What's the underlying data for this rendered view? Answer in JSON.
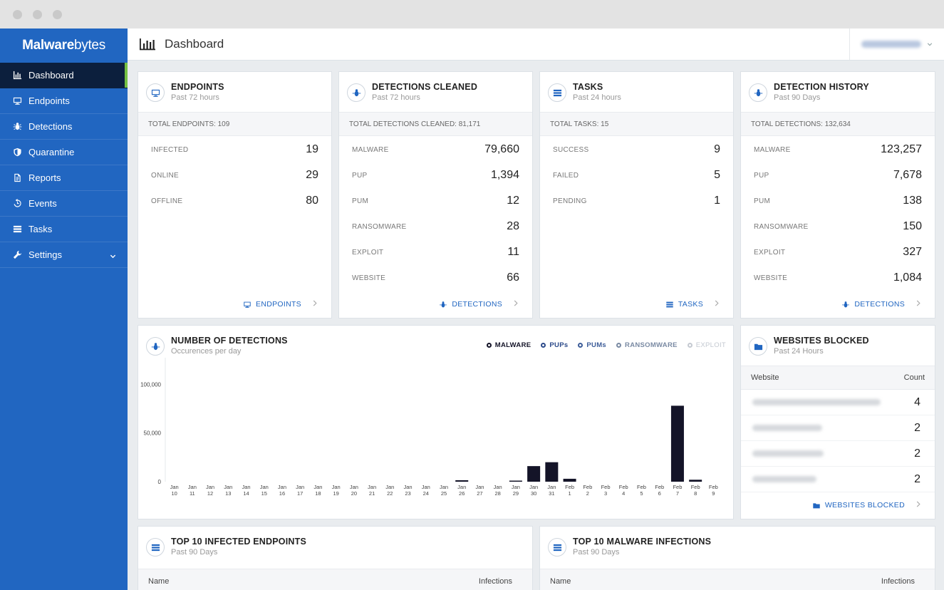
{
  "window": {
    "dots": [
      "#c9c9c9",
      "#c9c9c9",
      "#c9c9c9"
    ]
  },
  "brand": {
    "logo_prefix": "Malware",
    "logo_suffix": "bytes"
  },
  "colors": {
    "sidebar": "#2166c1",
    "active_nav": "#0c1f3d",
    "active_accent": "#74c043",
    "accent": "#2166c1",
    "bar": "#141428"
  },
  "sidebar": {
    "items": [
      {
        "label": "Dashboard",
        "icon": "bar-chart-icon"
      },
      {
        "label": "Endpoints",
        "icon": "monitor-icon"
      },
      {
        "label": "Detections",
        "icon": "bug-icon"
      },
      {
        "label": "Quarantine",
        "icon": "shield-icon"
      },
      {
        "label": "Reports",
        "icon": "document-icon"
      },
      {
        "label": "Events",
        "icon": "history-icon"
      },
      {
        "label": "Tasks",
        "icon": "tasks-icon"
      },
      {
        "label": "Settings",
        "icon": "wrench-icon"
      }
    ]
  },
  "header": {
    "title": "Dashboard"
  },
  "cards": {
    "endpoints": {
      "title": "ENDPOINTS",
      "subtitle": "Past 72 hours",
      "total": "TOTAL ENDPOINTS: 109",
      "rows": [
        {
          "label": "INFECTED",
          "value": "19"
        },
        {
          "label": "ONLINE",
          "value": "29"
        },
        {
          "label": "OFFLINE",
          "value": "80"
        }
      ],
      "link": "ENDPOINTS"
    },
    "detections_cleaned": {
      "title": "DETECTIONS CLEANED",
      "subtitle": "Past 72 hours",
      "total": "TOTAL DETECTIONS CLEANED: 81,171",
      "rows": [
        {
          "label": "MALWARE",
          "value": "79,660"
        },
        {
          "label": "PUP",
          "value": "1,394"
        },
        {
          "label": "PUM",
          "value": "12"
        },
        {
          "label": "RANSOMWARE",
          "value": "28"
        },
        {
          "label": "EXPLOIT",
          "value": "11"
        },
        {
          "label": "WEBSITE",
          "value": "66"
        }
      ],
      "link": "DETECTIONS"
    },
    "tasks": {
      "title": "TASKS",
      "subtitle": "Past 24 hours",
      "total": "TOTAL TASKS: 15",
      "rows": [
        {
          "label": "SUCCESS",
          "value": "9"
        },
        {
          "label": "FAILED",
          "value": "5"
        },
        {
          "label": "PENDING",
          "value": "1"
        }
      ],
      "link": "TASKS"
    },
    "detection_history": {
      "title": "DETECTION HISTORY",
      "subtitle": "Past 90 Days",
      "total": "TOTAL DETECTIONS: 132,634",
      "rows": [
        {
          "label": "MALWARE",
          "value": "123,257"
        },
        {
          "label": "PUP",
          "value": "7,678"
        },
        {
          "label": "PUM",
          "value": "138"
        },
        {
          "label": "RANSOMWARE",
          "value": "150"
        },
        {
          "label": "EXPLOIT",
          "value": "327"
        },
        {
          "label": "WEBSITE",
          "value": "1,084"
        }
      ],
      "link": "DETECTIONS"
    }
  },
  "detections_chart": {
    "title": "NUMBER OF DETECTIONS",
    "subtitle": "Occurences per day",
    "legend": [
      {
        "label": "MALWARE",
        "color": "#141428"
      },
      {
        "label": "PUPs",
        "color": "#2c4a8a"
      },
      {
        "label": "PUMs",
        "color": "#3d5d99"
      },
      {
        "label": "RANSOMWARE",
        "color": "#7a8aa3"
      },
      {
        "label": "EXPLOIT",
        "color": "#c4c9d1"
      }
    ]
  },
  "chart_data": {
    "type": "bar",
    "categories": [
      "Jan 10",
      "Jan 11",
      "Jan 12",
      "Jan 13",
      "Jan 14",
      "Jan 15",
      "Jan 16",
      "Jan 17",
      "Jan 18",
      "Jan 19",
      "Jan 20",
      "Jan 21",
      "Jan 22",
      "Jan 23",
      "Jan 24",
      "Jan 25",
      "Jan 26",
      "Jan 27",
      "Jan 28",
      "Jan 29",
      "Jan 30",
      "Jan 31",
      "Feb 1",
      "Feb 2",
      "Feb 3",
      "Feb 4",
      "Feb 5",
      "Feb 6",
      "Feb 7",
      "Feb 8",
      "Feb 9"
    ],
    "series": [
      {
        "name": "MALWARE",
        "values": [
          0,
          0,
          0,
          0,
          0,
          0,
          0,
          0,
          0,
          0,
          0,
          0,
          0,
          0,
          0,
          0,
          1500,
          0,
          0,
          1000,
          16000,
          20000,
          3000,
          0,
          0,
          0,
          0,
          0,
          78000,
          2000,
          0
        ]
      }
    ],
    "yticks": [
      "0",
      "50,000",
      "100,000"
    ],
    "ylim": [
      0,
      120000
    ]
  },
  "websites_blocked": {
    "title": "WEBSITES BLOCKED",
    "subtitle": "Past 24 Hours",
    "col_website": "Website",
    "col_count": "Count",
    "rows": [
      {
        "count": "4"
      },
      {
        "count": "2"
      },
      {
        "count": "2"
      },
      {
        "count": "2"
      }
    ],
    "link": "WEBSITES BLOCKED"
  },
  "top_endpoints": {
    "title": "TOP 10 INFECTED ENDPOINTS",
    "subtitle": "Past 90 Days",
    "col_name": "Name",
    "col_value": "Infections"
  },
  "top_malware": {
    "title": "TOP 10 MALWARE INFECTIONS",
    "subtitle": "Past 90 Days",
    "col_name": "Name",
    "col_value": "Infections"
  }
}
